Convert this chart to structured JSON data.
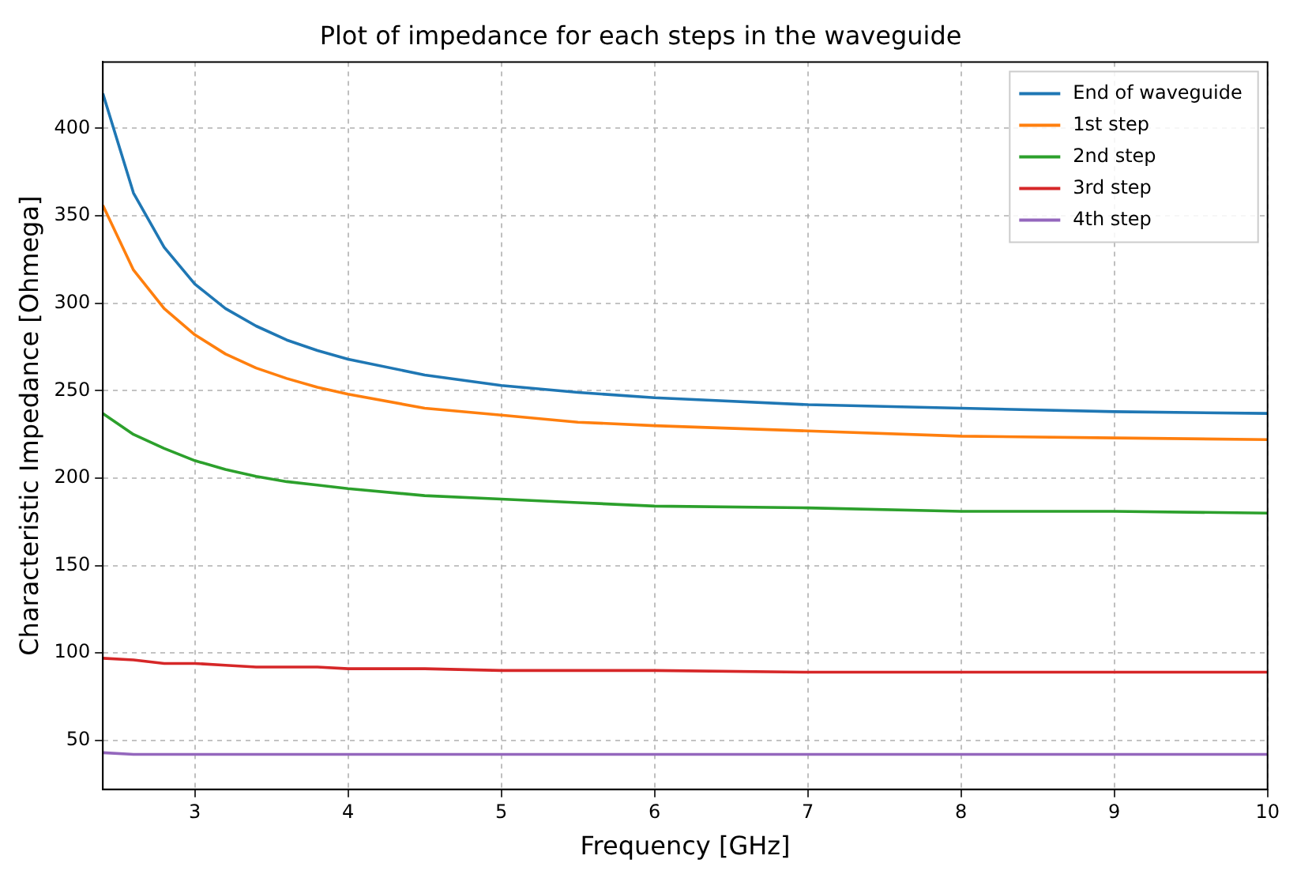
{
  "chart_data": {
    "type": "line",
    "title": "Plot of impedance for each steps in the waveguide",
    "xlabel": "Frequency [GHz]",
    "ylabel": "Characteristic Impedance [Ohmega]",
    "x": [
      2.4,
      2.6,
      2.8,
      3.0,
      3.2,
      3.4,
      3.6,
      3.8,
      4.0,
      4.5,
      5.0,
      5.5,
      6.0,
      7.0,
      8.0,
      9.0,
      10.0
    ],
    "series": [
      {
        "name": "End of waveguide",
        "color": "#1f77b4",
        "values": [
          420,
          363,
          332,
          311,
          297,
          287,
          279,
          273,
          268,
          259,
          253,
          249,
          246,
          242,
          240,
          238,
          237
        ]
      },
      {
        "name": "1st step",
        "color": "#ff7f0e",
        "values": [
          356,
          319,
          297,
          282,
          271,
          263,
          257,
          252,
          248,
          240,
          236,
          232,
          230,
          227,
          224,
          223,
          222
        ]
      },
      {
        "name": "2nd step",
        "color": "#2ca02c",
        "values": [
          237,
          225,
          217,
          210,
          205,
          201,
          198,
          196,
          194,
          190,
          188,
          186,
          184,
          183,
          181,
          181,
          180
        ]
      },
      {
        "name": "3rd step",
        "color": "#d62728",
        "values": [
          97,
          96,
          94,
          94,
          93,
          92,
          92,
          92,
          91,
          91,
          90,
          90,
          90,
          89,
          89,
          89,
          89
        ]
      },
      {
        "name": "4th step",
        "color": "#9467bd",
        "values": [
          43,
          42,
          42,
          42,
          42,
          42,
          42,
          42,
          42,
          42,
          42,
          42,
          42,
          42,
          42,
          42,
          42
        ]
      }
    ],
    "xlim": [
      2.4,
      10
    ],
    "ylim": [
      22,
      438
    ],
    "xticks": [
      3,
      4,
      5,
      6,
      7,
      8,
      9,
      10
    ],
    "yticks": [
      50,
      100,
      150,
      200,
      250,
      300,
      350,
      400
    ],
    "grid": true,
    "legend": "top right",
    "marker": "none",
    "line_style": "solid"
  }
}
